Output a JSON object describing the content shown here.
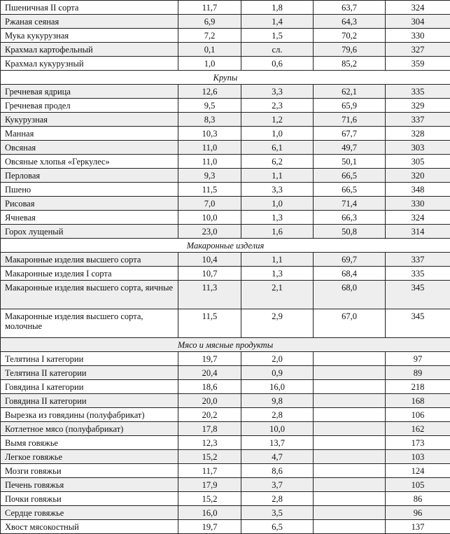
{
  "rows": [
    {
      "type": "item",
      "name": "Пшеничная II сорта",
      "values": [
        "11,7",
        "1,8",
        "63,7",
        "324"
      ],
      "shaded": false
    },
    {
      "type": "item",
      "name": "Ржаная сеяная",
      "values": [
        "6,9",
        "1,4",
        "64,3",
        "304"
      ],
      "shaded": true
    },
    {
      "type": "item",
      "name": "Мука кукурузная",
      "values": [
        "7,2",
        "1,5",
        "70,2",
        "330"
      ],
      "shaded": false
    },
    {
      "type": "item",
      "name": "Крахмал картофельный",
      "values": [
        "0,1",
        "сл.",
        "79,6",
        "327"
      ],
      "shaded": true
    },
    {
      "type": "item",
      "name": "Крахмал кукурузный",
      "values": [
        "1,0",
        "0,6",
        "85,2",
        "359"
      ],
      "shaded": false
    },
    {
      "type": "section",
      "name": "Крупы",
      "shaded": false
    },
    {
      "type": "item",
      "name": "Гречневая ядрица",
      "values": [
        "12,6",
        "3,3",
        "62,1",
        "335"
      ],
      "shaded": true
    },
    {
      "type": "item",
      "name": "Гречневая продел",
      "values": [
        "9,5",
        "2,3",
        "65,9",
        "329"
      ],
      "shaded": false
    },
    {
      "type": "item",
      "name": "Кукурузная",
      "values": [
        "8,3",
        "1,2",
        "71,6",
        "337"
      ],
      "shaded": true
    },
    {
      "type": "item",
      "name": "Манная",
      "values": [
        "10,3",
        "1,0",
        "67,7",
        "328"
      ],
      "shaded": false
    },
    {
      "type": "item",
      "name": "Овсяная",
      "values": [
        "11,0",
        "6,1",
        "49,7",
        "303"
      ],
      "shaded": true
    },
    {
      "type": "item",
      "name": "Овсяные хлопья «Геркулес»",
      "values": [
        "11,0",
        "6,2",
        "50,1",
        "305"
      ],
      "shaded": false
    },
    {
      "type": "item",
      "name": "Перловая",
      "values": [
        "9,3",
        "1,1",
        "66,5",
        "320"
      ],
      "shaded": true
    },
    {
      "type": "item",
      "name": "Пшено",
      "values": [
        "11,5",
        "3,3",
        "66,5",
        "348"
      ],
      "shaded": false
    },
    {
      "type": "item",
      "name": "Рисовая",
      "values": [
        "7,0",
        "1,0",
        "71,4",
        "330"
      ],
      "shaded": true
    },
    {
      "type": "item",
      "name": "Ячневая",
      "values": [
        "10,0",
        "1,3",
        "66,3",
        "324"
      ],
      "shaded": false
    },
    {
      "type": "item",
      "name": "Горох лущеный",
      "values": [
        "23,0",
        "1,6",
        "50,8",
        "314"
      ],
      "shaded": true
    },
    {
      "type": "section",
      "name": "Макаронные изделия",
      "shaded": false
    },
    {
      "type": "item",
      "name": "Макаронные изделия высшего сорта",
      "values": [
        "10,4",
        "1,1",
        "69,7",
        "337"
      ],
      "shaded": true
    },
    {
      "type": "item",
      "name": "Макаронные изделия I сорта",
      "values": [
        "10,7",
        "1,3",
        "68,4",
        "335"
      ],
      "shaded": false
    },
    {
      "type": "item",
      "name": "Макаронные изделия высшего сорта, яичные",
      "values": [
        "11,3",
        "2,1",
        "68,0",
        "345"
      ],
      "shaded": true,
      "tall": true
    },
    {
      "type": "item",
      "name": "Макаронные изделия высшего сорта, молочные",
      "values": [
        "11,5",
        "2,9",
        "67,0",
        "345"
      ],
      "shaded": false,
      "tall": true
    },
    {
      "type": "section",
      "name": "Мясо и мясные продукты",
      "shaded": true
    },
    {
      "type": "item",
      "name": "Телятина I категории",
      "values": [
        "19,7",
        "2,0",
        "",
        "97"
      ],
      "shaded": false
    },
    {
      "type": "item",
      "name": "Телятина II категории",
      "values": [
        "20,4",
        "0,9",
        "",
        "89"
      ],
      "shaded": true
    },
    {
      "type": "item",
      "name": "Говядина I категории",
      "values": [
        "18,6",
        "16,0",
        "",
        "218"
      ],
      "shaded": false
    },
    {
      "type": "item",
      "name": "Говядина II категории",
      "values": [
        "20,0",
        "9,8",
        "",
        "168"
      ],
      "shaded": true
    },
    {
      "type": "item",
      "name": "Вырезка из говядины (полуфабрикат)",
      "values": [
        "20,2",
        "2,8",
        "",
        "106"
      ],
      "shaded": false
    },
    {
      "type": "item",
      "name": "Котлетное мясо (полуфабрикат)",
      "values": [
        "17,8",
        "10,0",
        "",
        "162"
      ],
      "shaded": true
    },
    {
      "type": "item",
      "name": "Вымя говяжье",
      "values": [
        "12,3",
        "13,7",
        "",
        "173"
      ],
      "shaded": false
    },
    {
      "type": "item",
      "name": "Легкое говяжье",
      "values": [
        "15,2",
        "4,7",
        "",
        "103"
      ],
      "shaded": true
    },
    {
      "type": "item",
      "name": "Мозги говяжьи",
      "values": [
        "11,7",
        "8,6",
        "",
        "124"
      ],
      "shaded": false
    },
    {
      "type": "item",
      "name": "Печень говяжья",
      "values": [
        "17,9",
        "3,7",
        "",
        "105"
      ],
      "shaded": true
    },
    {
      "type": "item",
      "name": "Почки говяжьи",
      "values": [
        "15,2",
        "2,8",
        "",
        "86"
      ],
      "shaded": false
    },
    {
      "type": "item",
      "name": "Сердце говяжье",
      "values": [
        "16,0",
        "3,5",
        "",
        "96"
      ],
      "shaded": true
    },
    {
      "type": "item",
      "name": "Хвост мясокостный",
      "values": [
        "19,7",
        "6,5",
        "",
        "137"
      ],
      "shaded": false
    }
  ]
}
